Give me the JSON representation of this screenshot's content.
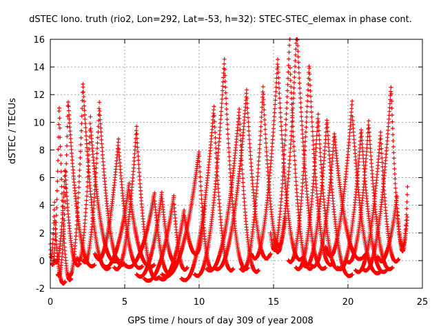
{
  "chart_data": {
    "type": "scatter",
    "title": "dSTEC Iono. truth (rio2, Lon=292, Lat=-53, h=32): STEC-STEC_elemax in phase cont.",
    "xlabel": "GPS time / hours of day 309 of year 2008",
    "ylabel": "dSTEC  / TECUs",
    "xlim": [
      0,
      25
    ],
    "ylim": [
      -2,
      16
    ],
    "xticks": [
      0,
      5,
      10,
      15,
      20,
      25
    ],
    "yticks": [
      -2,
      0,
      2,
      4,
      6,
      8,
      10,
      12,
      14,
      16
    ],
    "grid": true,
    "marker": "+",
    "color": "#ff0000",
    "arcs": [
      {
        "start": 0.0,
        "peak": 0.3,
        "end": 1.0,
        "peakY": 3.0,
        "startY": 1.2,
        "endY": -1.5
      },
      {
        "start": 0.1,
        "peak": 0.6,
        "end": 1.4,
        "peakY": 11.2,
        "startY": -0.2,
        "endY": -1.3
      },
      {
        "start": 0.3,
        "peak": 1.0,
        "end": 2.0,
        "peakY": 6.5,
        "startY": 0.0,
        "endY": -0.2
      },
      {
        "start": 0.5,
        "peak": 1.2,
        "end": 3.0,
        "peakY": 11.5,
        "startY": -1.0,
        "endY": -0.3
      },
      {
        "start": 1.2,
        "peak": 2.2,
        "end": 4.0,
        "peakY": 12.7,
        "startY": -1.0,
        "endY": -0.5
      },
      {
        "start": 1.8,
        "peak": 2.7,
        "end": 4.6,
        "peakY": 9.8,
        "startY": 0.2,
        "endY": 0.1
      },
      {
        "start": 2.2,
        "peak": 3.3,
        "end": 5.0,
        "peakY": 11.1,
        "startY": 0.0,
        "endY": -0.2
      },
      {
        "start": 3.0,
        "peak": 4.6,
        "end": 6.2,
        "peakY": 8.1,
        "startY": 0.5,
        "endY": -0.4
      },
      {
        "start": 3.5,
        "peak": 5.3,
        "end": 7.0,
        "peakY": 5.2,
        "startY": -0.3,
        "endY": -0.3
      },
      {
        "start": 4.3,
        "peak": 5.8,
        "end": 7.3,
        "peakY": 9.4,
        "startY": -0.5,
        "endY": -1.2
      },
      {
        "start": 5.0,
        "peak": 7.0,
        "end": 8.2,
        "peakY": 4.5,
        "startY": -0.3,
        "endY": -0.8
      },
      {
        "start": 5.8,
        "peak": 7.5,
        "end": 8.6,
        "peakY": 4.6,
        "startY": -1.0,
        "endY": 0.0
      },
      {
        "start": 6.3,
        "peak": 8.3,
        "end": 9.2,
        "peakY": 4.3,
        "startY": -1.3,
        "endY": -0.5
      },
      {
        "start": 7.3,
        "peak": 9.0,
        "end": 10.4,
        "peakY": 3.3,
        "startY": -1.2,
        "endY": 4.0
      },
      {
        "start": 7.5,
        "peak": 10.0,
        "end": 11.0,
        "peakY": 7.6,
        "startY": -1.0,
        "endY": -0.5
      },
      {
        "start": 8.8,
        "peak": 11.0,
        "end": 12.3,
        "peakY": 10.8,
        "startY": -1.3,
        "endY": -0.6
      },
      {
        "start": 9.7,
        "peak": 11.7,
        "end": 13.3,
        "peakY": 14.2,
        "startY": -1.0,
        "endY": -0.5
      },
      {
        "start": 10.5,
        "peak": 12.7,
        "end": 14.0,
        "peakY": 10.6,
        "startY": -0.6,
        "endY": -0.7
      },
      {
        "start": 11.0,
        "peak": 13.2,
        "end": 14.8,
        "peakY": 12.0,
        "startY": -0.5,
        "endY": 0.5
      },
      {
        "start": 12.8,
        "peak": 14.3,
        "end": 15.8,
        "peakY": 12.3,
        "startY": -0.6,
        "endY": 3.2
      },
      {
        "start": 13.5,
        "peak": 15.3,
        "end": 17.0,
        "peakY": 14.0,
        "startY": 0.5,
        "endY": 0.3
      },
      {
        "start": 14.8,
        "peak": 16.1,
        "end": 17.6,
        "peakY": 14.3,
        "startY": 2.0,
        "endY": -0.5
      },
      {
        "start": 15.0,
        "peak": 16.6,
        "end": 18.5,
        "peakY": 16.0,
        "startY": 1.5,
        "endY": -0.5
      },
      {
        "start": 16.0,
        "peak": 17.4,
        "end": 19.0,
        "peakY": 14.0,
        "startY": 0.0,
        "endY": -0.2
      },
      {
        "start": 16.5,
        "peak": 18.0,
        "end": 19.5,
        "peakY": 10.3,
        "startY": -0.5,
        "endY": -0.5
      },
      {
        "start": 17.0,
        "peak": 18.6,
        "end": 20.3,
        "peakY": 10.0,
        "startY": -0.3,
        "endY": -1.0
      },
      {
        "start": 17.5,
        "peak": 19.1,
        "end": 21.2,
        "peakY": 9.0,
        "startY": -0.3,
        "endY": 0.5
      },
      {
        "start": 18.5,
        "peak": 20.3,
        "end": 22.2,
        "peakY": 10.4,
        "startY": 1.0,
        "endY": -0.8
      },
      {
        "start": 19.3,
        "peak": 20.9,
        "end": 22.6,
        "peakY": 9.3,
        "startY": -0.5,
        "endY": -0.7
      },
      {
        "start": 19.9,
        "peak": 21.4,
        "end": 23.0,
        "peakY": 9.8,
        "startY": 0.0,
        "endY": -0.5
      },
      {
        "start": 20.5,
        "peak": 22.2,
        "end": 23.4,
        "peakY": 9.0,
        "startY": -0.7,
        "endY": 0.1
      },
      {
        "start": 21.0,
        "peak": 22.9,
        "end": 24.0,
        "peakY": 12.3,
        "startY": -0.6,
        "endY": 3.3
      },
      {
        "start": 22.0,
        "peak": 23.3,
        "end": 24.0,
        "peakY": 4.0,
        "startY": 0.3,
        "endY": 5.4
      }
    ]
  }
}
